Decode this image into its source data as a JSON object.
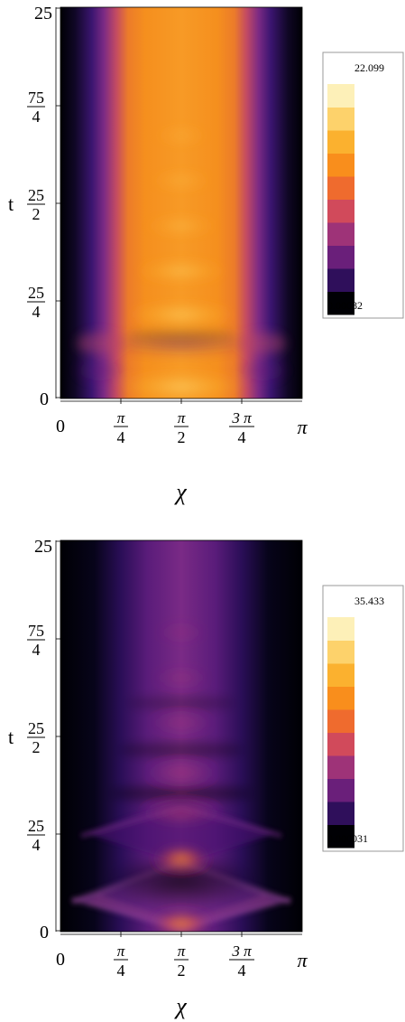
{
  "chart_data": [
    {
      "type": "heatmap",
      "xlabel": "χ",
      "ylabel": "t",
      "xlim": [
        0,
        3.14159
      ],
      "ylim": [
        0,
        25
      ],
      "x_ticks": [
        {
          "value": 0,
          "numerator": "0",
          "denominator": ""
        },
        {
          "value": 0.7854,
          "numerator": "π",
          "denominator": "4"
        },
        {
          "value": 1.5708,
          "numerator": "π",
          "denominator": "2"
        },
        {
          "value": 2.3562,
          "numerator": "3 π",
          "denominator": "4"
        },
        {
          "value": 3.14159,
          "numerator": "π",
          "denominator": ""
        }
      ],
      "y_ticks": [
        {
          "value": 0,
          "numerator": "0",
          "denominator": ""
        },
        {
          "value": 6.25,
          "numerator": "25",
          "denominator": "4"
        },
        {
          "value": 12.5,
          "numerator": "25",
          "denominator": "2"
        },
        {
          "value": 18.75,
          "numerator": "75",
          "denominator": "4"
        },
        {
          "value": 25,
          "numerator": "25",
          "denominator": ""
        }
      ],
      "legend": {
        "placement": "right",
        "max_label": "22.099",
        "min_label": "0.00082",
        "min": 0.00082,
        "max": 22.099,
        "swatches": [
          "#000004",
          "#2f0f5b",
          "#6a1f7a",
          "#9e3378",
          "#d14a5b",
          "#ef6b2e",
          "#f98e1c",
          "#fbb12f",
          "#fdd26b",
          "#fdf0b8"
        ]
      },
      "grid": false
    },
    {
      "type": "heatmap",
      "xlabel": "χ",
      "ylabel": "t",
      "xlim": [
        0,
        3.14159
      ],
      "ylim": [
        0,
        25
      ],
      "x_ticks": [
        {
          "value": 0,
          "numerator": "0",
          "denominator": ""
        },
        {
          "value": 0.7854,
          "numerator": "π",
          "denominator": "4"
        },
        {
          "value": 1.5708,
          "numerator": "π",
          "denominator": "2"
        },
        {
          "value": 2.3562,
          "numerator": "3 π",
          "denominator": "4"
        },
        {
          "value": 3.14159,
          "numerator": "π",
          "denominator": ""
        }
      ],
      "y_ticks": [
        {
          "value": 0,
          "numerator": "0",
          "denominator": ""
        },
        {
          "value": 6.25,
          "numerator": "25",
          "denominator": "4"
        },
        {
          "value": 12.5,
          "numerator": "25",
          "denominator": "2"
        },
        {
          "value": 18.75,
          "numerator": "75",
          "denominator": "4"
        },
        {
          "value": 25,
          "numerator": "25",
          "denominator": ""
        }
      ],
      "legend": {
        "placement": "right",
        "max_label": "35.433",
        "min_label": "0.000031",
        "min": 3.1e-05,
        "max": 35.433,
        "swatches": [
          "#000004",
          "#2f0f5b",
          "#6a1f7a",
          "#9e3378",
          "#d14a5b",
          "#ef6b2e",
          "#f98e1c",
          "#fbb12f",
          "#fdd26b",
          "#fdf0b8"
        ]
      },
      "grid": false
    }
  ]
}
